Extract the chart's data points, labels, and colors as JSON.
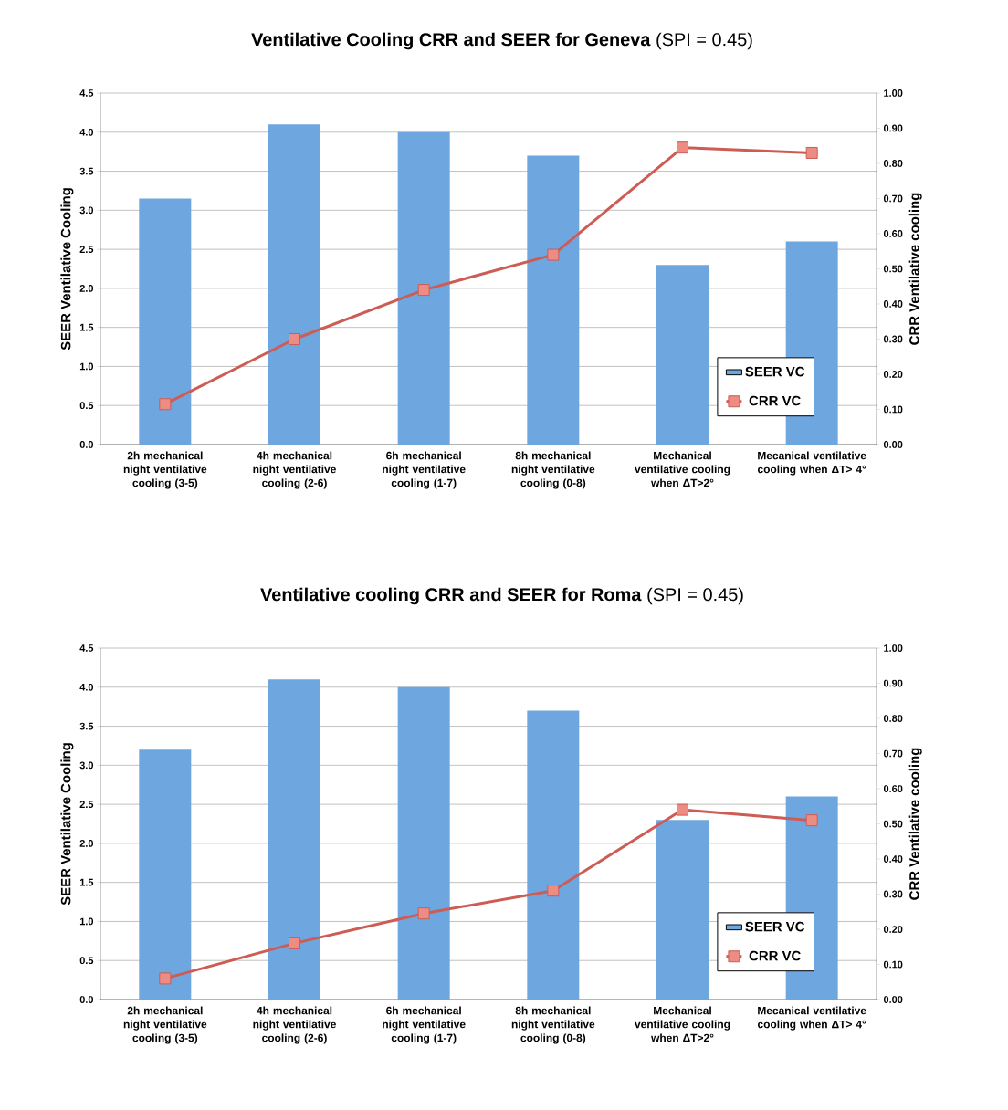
{
  "chart_data": [
    {
      "type": "bar",
      "title": "**Ventilative Cooling  CRR and SEER for Geneva** (SPI = 0.45)",
      "ylabel": "SEER Ventilative Cooling",
      "y2label": "CRR Ventilative cooling",
      "categories": [
        "2h mechanical night ventilative cooling (3-5)",
        "4h mechanical night ventilative cooling (2-6)",
        "6h mechanical night ventilative cooling (1-7)",
        "8h mechanical night ventilative cooling (0-8)",
        "Mechanical ventilative cooling when ΔT>2°",
        "Mecanical ventilative cooling when ΔT> 4°"
      ],
      "series": [
        {
          "name": "SEER VC",
          "color": "#6ea6e0",
          "values": [
            3.15,
            4.1,
            4.0,
            3.7,
            2.3,
            2.6
          ]
        },
        {
          "name": "CRR VC",
          "type": "line",
          "axis": "y2",
          "color": "#cd5c55",
          "marker": "square",
          "values": [
            0.115,
            0.3,
            0.44,
            0.54,
            0.845,
            0.83
          ]
        }
      ],
      "ylim": [
        0,
        4.5
      ],
      "yticks": [
        {
          "value": 0,
          "label": "0.0"
        },
        0.5,
        {
          "value": 1,
          "label": "1.0"
        },
        1.5,
        {
          "value": 2,
          "label": "2.0"
        },
        2.5,
        {
          "value": 3,
          "label": "3.0"
        },
        3.5,
        {
          "value": 4,
          "label": "4.0"
        },
        4.5
      ],
      "y2lim": [
        0,
        1
      ],
      "y2ticks": [
        {
          "value": 0,
          "label": "0.00"
        },
        {
          "value": 0.1,
          "label": "0.10"
        },
        {
          "value": 0.2,
          "label": "0.20"
        },
        {
          "value": 0.3,
          "label": "0.30"
        },
        {
          "value": 0.4,
          "label": "0.40"
        },
        {
          "value": 0.5,
          "label": "0.50"
        },
        {
          "value": 0.6,
          "label": "0.60"
        },
        {
          "value": 0.7,
          "label": "0.70"
        },
        {
          "value": 0.8,
          "label": "0.80"
        },
        {
          "value": 0.9,
          "label": "0.90"
        },
        {
          "value": 1,
          "label": "1.00"
        }
      ],
      "grid": "y",
      "legend": "bottom right"
    },
    {
      "type": "bar",
      "title": "**Ventilative cooling  CRR and SEER for Roma** (SPI = 0.45)",
      "ylabel": "SEER Ventilative Cooling",
      "y2label": "CRR Ventilative cooling",
      "categories": [
        "2h mechanical night ventilative cooling (3-5)",
        "4h mechanical night ventilative cooling (2-6)",
        "6h mechanical night ventilative cooling (1-7)",
        "8h mechanical night ventilative cooling (0-8)",
        "Mechanical ventilative cooling when ΔT>2°",
        "Mecanical ventilative cooling when ΔT> 4°"
      ],
      "series": [
        {
          "name": "SEER VC",
          "color": "#6ea6e0",
          "values": [
            3.2,
            4.1,
            4.0,
            3.7,
            2.3,
            2.6
          ]
        },
        {
          "name": "CRR VC",
          "type": "line",
          "axis": "y2",
          "color": "#cd5c55",
          "marker": "square",
          "values": [
            0.06,
            0.16,
            0.245,
            0.31,
            0.54,
            0.51
          ]
        }
      ],
      "ylim": [
        0,
        4.5
      ],
      "yticks": [
        {
          "value": 0,
          "label": "0.0"
        },
        0.5,
        {
          "value": 1,
          "label": "1.0"
        },
        1.5,
        {
          "value": 2,
          "label": "2.0"
        },
        2.5,
        {
          "value": 3,
          "label": "3.0"
        },
        3.5,
        {
          "value": 4,
          "label": "4.0"
        },
        4.5
      ],
      "y2lim": [
        0,
        1
      ],
      "y2ticks": [
        {
          "value": 0,
          "label": "0.00"
        },
        {
          "value": 0.1,
          "label": "0.10"
        },
        {
          "value": 0.2,
          "label": "0.20"
        },
        {
          "value": 0.3,
          "label": "0.30"
        },
        {
          "value": 0.4,
          "label": "0.40"
        },
        {
          "value": 0.5,
          "label": "0.50"
        },
        {
          "value": 0.6,
          "label": "0.60"
        },
        {
          "value": 0.7,
          "label": "0.70"
        },
        {
          "value": 0.8,
          "label": "0.80"
        },
        {
          "value": 0.9,
          "label": "0.90"
        },
        {
          "value": 1,
          "label": "1.00"
        }
      ],
      "grid": "y",
      "legend": "bottom right"
    }
  ]
}
